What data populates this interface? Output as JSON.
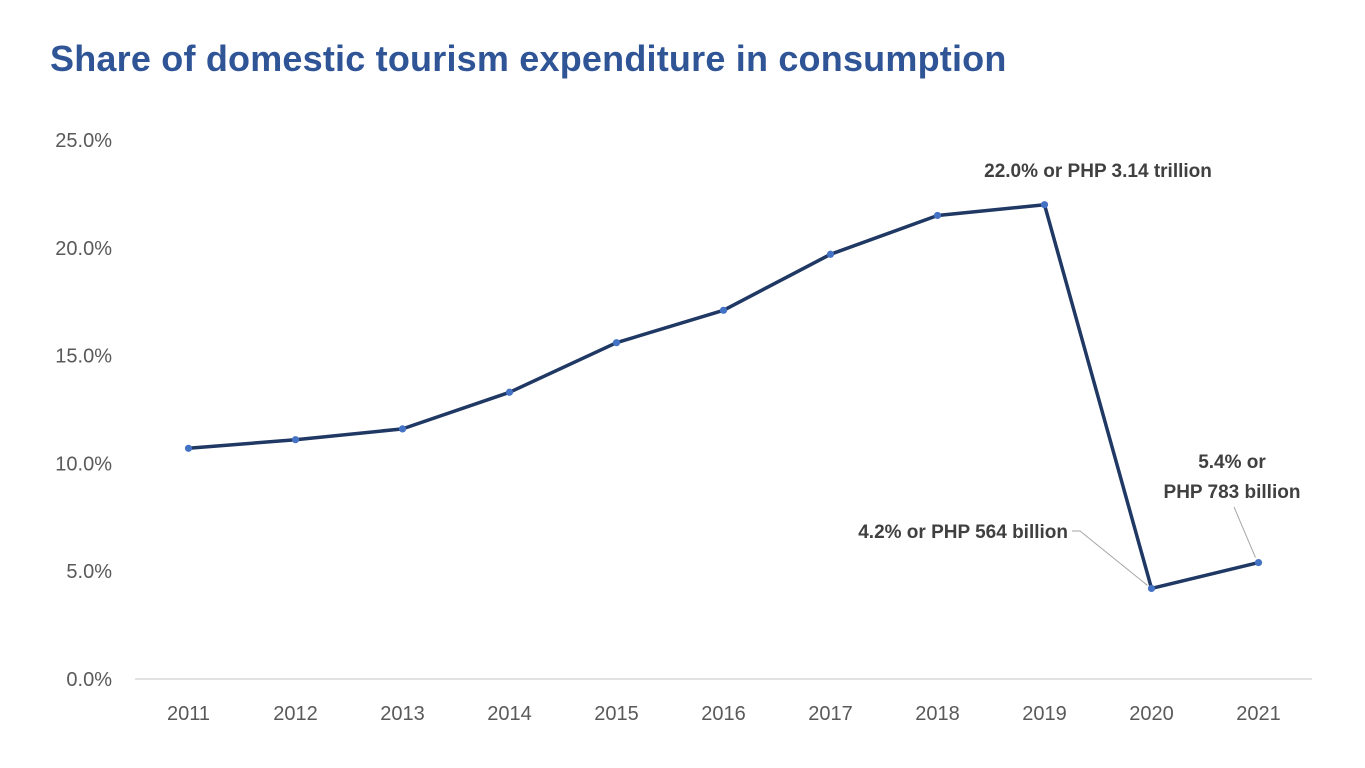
{
  "colors": {
    "title": "#2f5597",
    "line": "#1f3864",
    "marker": "#4472c4",
    "axis": "#d9d9d9",
    "tick_text": "#595959",
    "annotation_text": "#404040",
    "leader": "#a6a6a6"
  },
  "chart_data": {
    "type": "line",
    "title": "Share of domestic tourism expenditure in consumption",
    "xlabel": "",
    "ylabel": "",
    "categories": [
      "2011",
      "2012",
      "2013",
      "2014",
      "2015",
      "2016",
      "2017",
      "2018",
      "2019",
      "2020",
      "2021"
    ],
    "series": [
      {
        "values": [
          10.7,
          11.1,
          11.6,
          13.3,
          15.6,
          17.1,
          19.7,
          21.5,
          22.0,
          4.2,
          5.4
        ]
      }
    ],
    "ylim": [
      0,
      25
    ],
    "yticks": [
      0,
      5,
      10,
      15,
      20,
      25
    ],
    "ytick_labels": [
      "0.0%",
      "5.0%",
      "10.0%",
      "15.0%",
      "20.0%",
      "25.0%"
    ],
    "grid": false,
    "legend": "none",
    "annotations": [
      {
        "category": "2019",
        "lines": [
          "22.0% or PHP 3.14 trillion"
        ]
      },
      {
        "category": "2020",
        "lines": [
          "4.2% or PHP 564 billion"
        ]
      },
      {
        "category": "2021",
        "lines": [
          "5.4% or",
          "PHP 783 billion"
        ]
      }
    ]
  }
}
